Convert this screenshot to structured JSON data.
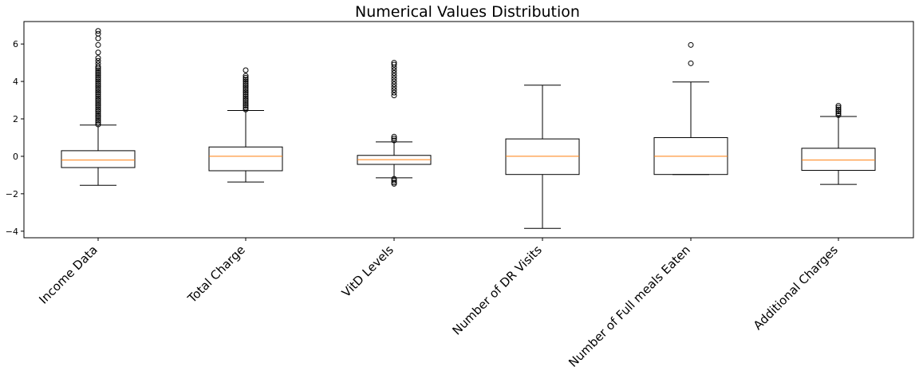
{
  "chart_data": {
    "type": "boxplot",
    "title": "Numerical Values Distribution",
    "xlabel": "",
    "ylabel": "",
    "ylim": [
      -4.35,
      7.2
    ],
    "yticks": [
      -4,
      -2,
      0,
      2,
      4,
      6
    ],
    "grid": false,
    "colors": {
      "box": "#000000",
      "median": "#ff7f0e",
      "background": "#ffffff"
    },
    "categories": [
      "Income Data",
      "Total Charge",
      "VitD Levels",
      "Number of DR Visits",
      "Number of Full meals Eaten",
      "Additional Charges"
    ],
    "boxes": [
      {
        "whisker_low": -1.55,
        "q1": -0.6,
        "median": -0.2,
        "q3": 0.3,
        "whisker_high": 1.67,
        "outliers": [
          1.7,
          1.8,
          1.9,
          2.0,
          2.1,
          2.2,
          2.3,
          2.4,
          2.5,
          2.6,
          2.7,
          2.8,
          2.9,
          3.0,
          3.1,
          3.2,
          3.3,
          3.4,
          3.5,
          3.6,
          3.7,
          3.8,
          3.9,
          4.0,
          4.1,
          4.2,
          4.3,
          4.4,
          4.5,
          4.6,
          4.7,
          4.8,
          4.95,
          5.1,
          5.25,
          5.55,
          5.95,
          6.3,
          6.55,
          6.7
        ]
      },
      {
        "whisker_low": -1.37,
        "q1": -0.77,
        "median": 0.0,
        "q3": 0.5,
        "whisker_high": 2.45,
        "outliers": [
          2.5,
          2.6,
          2.7,
          2.8,
          2.9,
          3.0,
          3.1,
          3.2,
          3.3,
          3.4,
          3.5,
          3.6,
          3.7,
          3.8,
          3.9,
          4.0,
          4.1,
          4.2,
          4.3,
          4.6
        ]
      },
      {
        "whisker_low": -1.15,
        "q1": -0.43,
        "median": -0.18,
        "q3": 0.05,
        "whisker_high": 0.77,
        "outliers": [
          0.85,
          0.95,
          1.05,
          -1.2,
          -1.3,
          -1.4,
          -1.47,
          3.25,
          3.4,
          3.55,
          3.7,
          3.85,
          4.0,
          4.15,
          4.3,
          4.45,
          4.6,
          4.75,
          4.9,
          5.0
        ]
      },
      {
        "whisker_low": -3.85,
        "q1": -0.97,
        "median": 0.0,
        "q3": 0.93,
        "whisker_high": 3.8,
        "outliers": []
      },
      {
        "whisker_low": -0.97,
        "q1": -0.97,
        "median": 0.0,
        "q3": 1.0,
        "whisker_high": 3.97,
        "outliers": [
          4.97,
          5.95
        ]
      },
      {
        "whisker_low": -1.5,
        "q1": -0.75,
        "median": -0.2,
        "q3": 0.43,
        "whisker_high": 2.13,
        "outliers": [
          2.2,
          2.3,
          2.4,
          2.5,
          2.6,
          2.7
        ]
      }
    ]
  }
}
